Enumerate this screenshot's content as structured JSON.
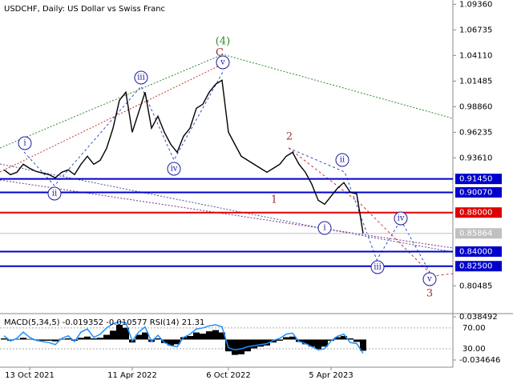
{
  "chart_data": [
    {
      "type": "line",
      "title": "USDCHF, Daily:  US Dollar vs Swiss Franc",
      "categories": [
        null,
        null,
        null,
        null,
        "13 Oct 2021",
        null,
        null,
        null,
        null,
        null,
        null,
        null,
        null,
        null,
        null,
        null,
        null,
        null,
        null,
        null,
        "11 Apr 2022",
        null,
        null,
        null,
        null,
        null,
        null,
        null,
        null,
        null,
        null,
        null,
        null,
        null,
        null,
        "6 Oct 2022",
        null,
        null,
        null,
        null,
        null,
        null,
        null,
        null,
        null,
        null,
        null,
        null,
        null,
        null,
        null,
        "5 Apr 2023",
        null,
        null,
        null,
        null,
        null
      ],
      "values": [
        0.9238,
        0.9189,
        0.9213,
        0.9295,
        0.9254,
        0.9222,
        0.9205,
        0.9189,
        0.9156,
        0.9213,
        0.9238,
        0.9189,
        0.9295,
        0.9377,
        0.9295,
        0.9336,
        0.9459,
        0.9665,
        0.9952,
        1.0034,
        0.9624,
        0.9829,
        1.0034,
        0.9665,
        0.9788,
        0.9624,
        0.95,
        0.9418,
        0.9583,
        0.9665,
        0.987,
        0.9911,
        1.0034,
        1.0116,
        1.0157,
        0.9624,
        0.95,
        0.9377,
        0.9336,
        0.9295,
        0.9254,
        0.9213,
        0.9254,
        0.9295,
        0.9377,
        0.9418,
        0.9295,
        0.9213,
        0.909,
        0.8926,
        0.8885,
        0.8967,
        0.9049,
        0.9107,
        0.9008,
        0.8992,
        0.85864
      ],
      "color": "#000000",
      "ylim": [
        0.778,
        1.098
      ],
      "yticks": [
        {
          "value": 1.0936,
          "label": "1.09360"
        },
        {
          "value": 1.06735,
          "label": "1.06735"
        },
        {
          "value": 1.0411,
          "label": "1.04110"
        },
        {
          "value": 1.01485,
          "label": "1.01485"
        },
        {
          "value": 0.9886,
          "label": "0.98860"
        },
        {
          "value": 0.96235,
          "label": "0.96235"
        },
        {
          "value": 0.9361,
          "label": "0.93610"
        },
        {
          "value": 0.80485,
          "label": "0.80485"
        }
      ],
      "levels": [
        {
          "value": 0.9145,
          "label": "0.91450",
          "color": "#0000cc"
        },
        {
          "value": 0.9007,
          "label": "0.90070",
          "color": "#0000cc"
        },
        {
          "value": 0.88,
          "label": "0.88000",
          "color": "#dd0000"
        },
        {
          "value": 0.85864,
          "label": "0.85864",
          "color": "#c0c0c0"
        },
        {
          "value": 0.84,
          "label": "0.84000",
          "color": "#0000cc"
        },
        {
          "value": 0.825,
          "label": "0.82500",
          "color": "#0000cc"
        }
      ],
      "annotations": [
        {
          "text": "(4)",
          "color": "#2e8b2e"
        },
        {
          "text": "C",
          "color": "#a03030"
        },
        {
          "text": "v",
          "color": "#1a1aa0"
        },
        {
          "text": "iii",
          "color": "#1a1aa0"
        },
        {
          "text": "i",
          "color": "#1a1aa0"
        },
        {
          "text": "ii",
          "color": "#1a1aa0"
        },
        {
          "text": "iv",
          "color": "#1a1aa0"
        },
        {
          "text": "2",
          "color": "#a03030"
        },
        {
          "text": "1",
          "color": "#a03030"
        },
        {
          "text": "i",
          "color": "#1a1aa0"
        },
        {
          "text": "ii",
          "color": "#1a1aa0"
        },
        {
          "text": "iv",
          "color": "#1a1aa0"
        },
        {
          "text": "iii",
          "color": "#1a1aa0"
        },
        {
          "text": "v",
          "color": "#1a1aa0"
        },
        {
          "text": "3",
          "color": "#a03030"
        }
      ]
    },
    {
      "type": "bar",
      "title": "MACD(5,34,5) -0.019352 -0.010577 RSI(14) 21.31",
      "values": [
        0.002,
        -0.002,
        0.001,
        0.003,
        0.001,
        -0.001,
        -0.002,
        -0.002,
        -0.003,
        0.001,
        0.002,
        -0.002,
        0.003,
        0.005,
        0.002,
        0.003,
        0.008,
        0.015,
        0.025,
        0.02,
        -0.005,
        0.008,
        0.012,
        -0.004,
        0.002,
        -0.006,
        -0.01,
        -0.008,
        0.004,
        0.006,
        0.012,
        0.01,
        0.014,
        0.016,
        0.012,
        -0.02,
        -0.026,
        -0.025,
        -0.02,
        -0.015,
        -0.012,
        -0.01,
        -0.005,
        -0.002,
        0.004,
        0.005,
        -0.004,
        -0.008,
        -0.012,
        -0.016,
        -0.012,
        -0.002,
        0.004,
        0.006,
        0.002,
        -0.004,
        -0.019
      ],
      "color": "#000000",
      "rsi": [
        55,
        45,
        50,
        62,
        52,
        46,
        44,
        42,
        38,
        50,
        55,
        44,
        62,
        68,
        52,
        58,
        70,
        78,
        82,
        80,
        45,
        62,
        72,
        44,
        56,
        42,
        36,
        34,
        52,
        58,
        68,
        70,
        74,
        76,
        72,
        32,
        28,
        30,
        34,
        36,
        38,
        40,
        46,
        50,
        58,
        60,
        44,
        40,
        34,
        28,
        30,
        45,
        54,
        58,
        42,
        40,
        21.31
      ],
      "rsi_color": "#1e90ff",
      "ylim": [
        -0.0455,
        0.0426
      ],
      "yticks": [
        0.038492,
        -0.034646
      ],
      "y2lim": [
        -3.8,
        96
      ],
      "y2ticks": [
        {
          "value": 70,
          "label": "70.00"
        },
        {
          "value": 30,
          "label": "30.00"
        }
      ]
    }
  ]
}
